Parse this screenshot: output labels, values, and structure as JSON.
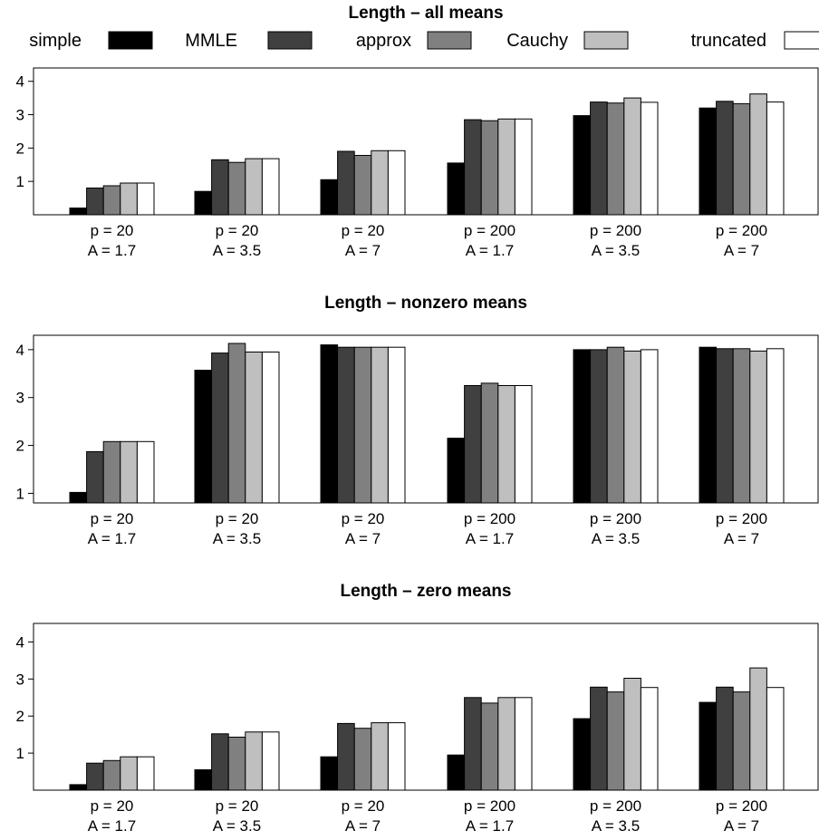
{
  "legend": {
    "series_colors": [
      "#000000",
      "#404040",
      "#808080",
      "#bfbfbf",
      "#ffffff"
    ]
  },
  "chart_data": [
    {
      "type": "bar",
      "title": "Length – all means",
      "categories": [
        [
          "p = 20",
          "A = 1.7"
        ],
        [
          "p = 20",
          "A = 3.5"
        ],
        [
          "p = 20",
          "A = 7"
        ],
        [
          "p = 200",
          "A = 1.7"
        ],
        [
          "p = 200",
          "A = 3.5"
        ],
        [
          "p = 200",
          "A = 7"
        ]
      ],
      "ylim": [
        0,
        4.4
      ],
      "yticks": [
        1,
        2,
        3,
        4
      ],
      "series": [
        {
          "name": "simple",
          "values": [
            0.2,
            0.7,
            1.05,
            1.55,
            2.97,
            3.2
          ]
        },
        {
          "name": "MMLE",
          "values": [
            0.8,
            1.65,
            1.9,
            2.85,
            3.38,
            3.4
          ]
        },
        {
          "name": "approx",
          "values": [
            0.87,
            1.57,
            1.78,
            2.82,
            3.35,
            3.33
          ]
        },
        {
          "name": "Cauchy",
          "values": [
            0.95,
            1.68,
            1.92,
            2.87,
            3.5,
            3.62
          ]
        },
        {
          "name": "truncated",
          "values": [
            0.95,
            1.68,
            1.92,
            2.87,
            3.37,
            3.38
          ]
        }
      ],
      "legend_position": "top"
    },
    {
      "type": "bar",
      "title": "Length – nonzero means",
      "categories": [
        [
          "p = 20",
          "A = 1.7"
        ],
        [
          "p = 20",
          "A = 3.5"
        ],
        [
          "p = 20",
          "A = 7"
        ],
        [
          "p = 200",
          "A = 1.7"
        ],
        [
          "p = 200",
          "A = 3.5"
        ],
        [
          "p = 200",
          "A = 7"
        ]
      ],
      "ylim": [
        0.8,
        4.3
      ],
      "yticks": [
        1,
        2,
        3,
        4
      ],
      "series": [
        {
          "name": "simple",
          "values": [
            1.02,
            3.57,
            4.1,
            2.15,
            4.0,
            4.05
          ]
        },
        {
          "name": "MMLE",
          "values": [
            1.87,
            3.93,
            4.05,
            3.25,
            4.0,
            4.02
          ]
        },
        {
          "name": "approx",
          "values": [
            2.08,
            4.13,
            4.05,
            3.3,
            4.05,
            4.02
          ]
        },
        {
          "name": "Cauchy",
          "values": [
            2.08,
            3.95,
            4.05,
            3.25,
            3.97,
            3.97
          ]
        },
        {
          "name": "truncated",
          "values": [
            2.08,
            3.95,
            4.05,
            3.25,
            4.0,
            4.02
          ]
        }
      ]
    },
    {
      "type": "bar",
      "title": "Length – zero means",
      "categories": [
        [
          "p = 20",
          "A = 1.7"
        ],
        [
          "p = 20",
          "A = 3.5"
        ],
        [
          "p = 20",
          "A = 7"
        ],
        [
          "p = 200",
          "A = 1.7"
        ],
        [
          "p = 200",
          "A = 3.5"
        ],
        [
          "p = 200",
          "A = 7"
        ]
      ],
      "ylim": [
        0,
        4.5
      ],
      "yticks": [
        1,
        2,
        3,
        4
      ],
      "series": [
        {
          "name": "simple",
          "values": [
            0.15,
            0.55,
            0.9,
            0.95,
            1.93,
            2.37
          ]
        },
        {
          "name": "MMLE",
          "values": [
            0.73,
            1.52,
            1.8,
            2.5,
            2.78,
            2.78
          ]
        },
        {
          "name": "approx",
          "values": [
            0.8,
            1.43,
            1.67,
            2.35,
            2.65,
            2.65
          ]
        },
        {
          "name": "Cauchy",
          "values": [
            0.9,
            1.57,
            1.82,
            2.5,
            3.02,
            3.3
          ]
        },
        {
          "name": "truncated",
          "values": [
            0.9,
            1.57,
            1.82,
            2.5,
            2.77,
            2.77
          ]
        }
      ]
    }
  ]
}
